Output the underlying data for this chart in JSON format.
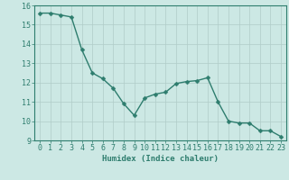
{
  "x": [
    0,
    1,
    2,
    3,
    4,
    5,
    6,
    7,
    8,
    9,
    10,
    11,
    12,
    13,
    14,
    15,
    16,
    17,
    18,
    19,
    20,
    21,
    22,
    23
  ],
  "y": [
    15.6,
    15.6,
    15.5,
    15.4,
    13.7,
    12.5,
    12.2,
    11.7,
    10.9,
    10.3,
    11.2,
    11.4,
    11.5,
    11.95,
    12.05,
    12.1,
    12.25,
    11.0,
    10.0,
    9.9,
    9.9,
    9.5,
    9.5,
    9.2
  ],
  "line_color": "#2e7d6e",
  "marker": "D",
  "marker_size": 2.5,
  "bg_color": "#cce8e4",
  "grid_color": "#b0ccc8",
  "xlabel": "Humidex (Indice chaleur)",
  "ylim": [
    9,
    16
  ],
  "xlim_min": -0.5,
  "xlim_max": 23.5,
  "yticks": [
    9,
    10,
    11,
    12,
    13,
    14,
    15,
    16
  ],
  "xticks": [
    0,
    1,
    2,
    3,
    4,
    5,
    6,
    7,
    8,
    9,
    10,
    11,
    12,
    13,
    14,
    15,
    16,
    17,
    18,
    19,
    20,
    21,
    22,
    23
  ],
  "xlabel_fontsize": 6.5,
  "tick_fontsize": 6.0,
  "linewidth": 1.0
}
